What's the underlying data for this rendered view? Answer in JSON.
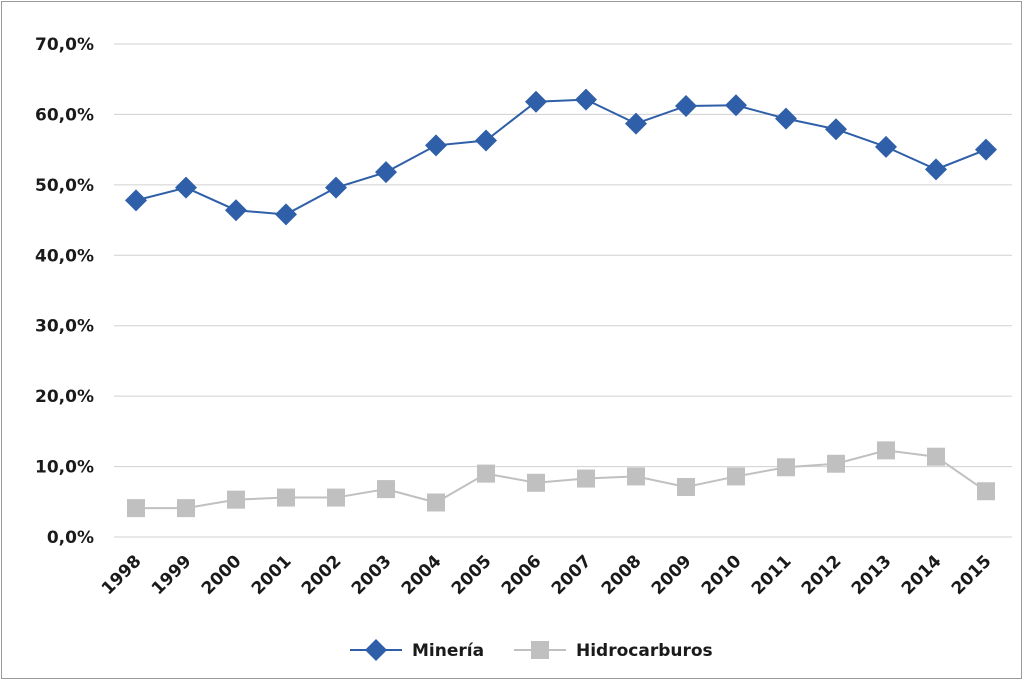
{
  "chart_data": {
    "type": "line",
    "categories": [
      "1998",
      "1999",
      "2000",
      "2001",
      "2002",
      "2003",
      "2004",
      "2005",
      "2006",
      "2007",
      "2008",
      "2009",
      "2010",
      "2011",
      "2012",
      "2013",
      "2014",
      "2015"
    ],
    "series": [
      {
        "name": "Minería",
        "color": "#2f5fa8",
        "marker": "diamond",
        "values": [
          47.8,
          49.6,
          46.4,
          45.8,
          49.6,
          51.8,
          55.6,
          56.3,
          61.8,
          62.1,
          58.7,
          61.2,
          61.3,
          59.4,
          57.9,
          55.4,
          52.2,
          55.0
        ]
      },
      {
        "name": "Hidrocarburos",
        "color": "#c0c0c0",
        "marker": "square",
        "values": [
          4.1,
          4.1,
          5.3,
          5.6,
          5.6,
          6.8,
          4.9,
          9.0,
          7.7,
          8.3,
          8.6,
          7.1,
          8.6,
          9.9,
          10.4,
          12.3,
          11.4,
          6.5
        ]
      }
    ],
    "ylim": [
      0,
      70
    ],
    "yticks": [
      "0,0%",
      "10,0%",
      "20,0%",
      "30,0%",
      "40,0%",
      "50,0%",
      "60,0%",
      "70,0%"
    ],
    "grid": true,
    "legend": "bottom"
  }
}
